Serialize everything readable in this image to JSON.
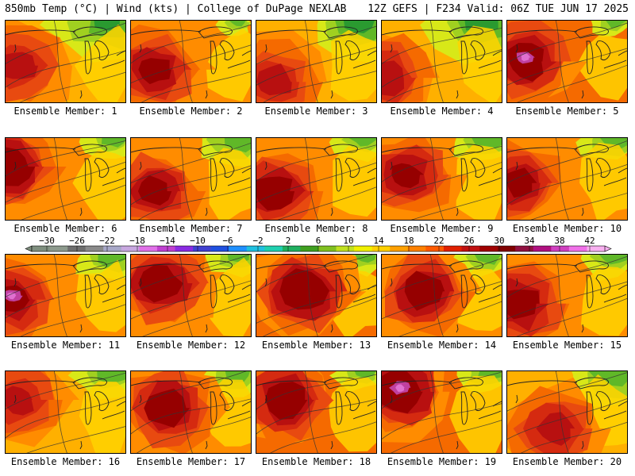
{
  "header": {
    "left_title": "850mb Temp (°C) | Wind (kts) | College of DuPage NEXLAB",
    "right_title": "12Z GEFS | F234 Valid: 06Z TUE JUN 17 2025"
  },
  "members": [
    {
      "label": "Ensemble Member: 1",
      "warm": 0.45,
      "cool": 0.75,
      "heat_x": 0.1,
      "heat_y": 0.55,
      "pink": false
    },
    {
      "label": "Ensemble Member: 2",
      "warm": 0.5,
      "cool": 0.15,
      "heat_x": 0.2,
      "heat_y": 0.6,
      "pink": false
    },
    {
      "label": "Ensemble Member: 3",
      "warm": 0.4,
      "cool": 0.7,
      "heat_x": 0.15,
      "heat_y": 0.75,
      "pink": false
    },
    {
      "label": "Ensemble Member: 4",
      "warm": 0.35,
      "cool": 0.85,
      "heat_x": 0.05,
      "heat_y": 0.7,
      "pink": false
    },
    {
      "label": "Ensemble Member: 5",
      "warm": 0.85,
      "cool": 0.2,
      "heat_x": 0.15,
      "heat_y": 0.5,
      "pink": true
    },
    {
      "label": "Ensemble Member: 6",
      "warm": 0.75,
      "cool": 0.3,
      "heat_x": 0.05,
      "heat_y": 0.35,
      "pink": false
    },
    {
      "label": "Ensemble Member: 7",
      "warm": 0.55,
      "cool": 0.45,
      "heat_x": 0.2,
      "heat_y": 0.65,
      "pink": false
    },
    {
      "label": "Ensemble Member: 8",
      "warm": 0.7,
      "cool": 0.3,
      "heat_x": 0.15,
      "heat_y": 0.65,
      "pink": false
    },
    {
      "label": "Ensemble Member: 9",
      "warm": 0.5,
      "cool": 0.4,
      "heat_x": 0.2,
      "heat_y": 0.45,
      "pink": false
    },
    {
      "label": "Ensemble Member: 10",
      "warm": 0.6,
      "cool": 0.35,
      "heat_x": 0.1,
      "heat_y": 0.55,
      "pink": false
    },
    {
      "label": "Ensemble Member: 11",
      "warm": 0.65,
      "cool": 0.4,
      "heat_x": 0.05,
      "heat_y": 0.55,
      "pink": true
    },
    {
      "label": "Ensemble Member: 12",
      "warm": 0.8,
      "cool": 0.3,
      "heat_x": 0.25,
      "heat_y": 0.35,
      "pink": false
    },
    {
      "label": "Ensemble Member: 13",
      "warm": 0.9,
      "cool": 0.25,
      "heat_x": 0.4,
      "heat_y": 0.45,
      "pink": false
    },
    {
      "label": "Ensemble Member: 14",
      "warm": 0.75,
      "cool": 0.3,
      "heat_x": 0.35,
      "heat_y": 0.45,
      "pink": false
    },
    {
      "label": "Ensemble Member: 15",
      "warm": 0.75,
      "cool": 0.35,
      "heat_x": 0.1,
      "heat_y": 0.6,
      "pink": false
    },
    {
      "label": "Ensemble Member: 16",
      "warm": 0.45,
      "cool": 0.4,
      "heat_x": 0.1,
      "heat_y": 0.35,
      "pink": false
    },
    {
      "label": "Ensemble Member: 17",
      "warm": 0.7,
      "cool": 0.35,
      "heat_x": 0.3,
      "heat_y": 0.45,
      "pink": false
    },
    {
      "label": "Ensemble Member: 18",
      "warm": 0.85,
      "cool": 0.25,
      "heat_x": 0.25,
      "heat_y": 0.35,
      "pink": false
    },
    {
      "label": "Ensemble Member: 19",
      "warm": 0.9,
      "cool": 0.3,
      "heat_x": 0.15,
      "heat_y": 0.25,
      "pink": true
    },
    {
      "label": "Ensemble Member: 20",
      "warm": 0.3,
      "cool": 0.6,
      "heat_x": 0.4,
      "heat_y": 0.7,
      "pink": false
    }
  ],
  "colorbar": {
    "tick_labels": [
      "-30",
      "-26",
      "-22",
      "-18",
      "-14",
      "-10",
      "-6",
      "-2",
      "2",
      "6",
      "10",
      "14",
      "18",
      "22",
      "26",
      "30",
      "34",
      "38",
      "42"
    ],
    "colors": [
      "#7f8f7f",
      "#8d9a8d",
      "#6e6e6e",
      "#8a8a8a",
      "#a8a8c8",
      "#c8a8e0",
      "#e070e8",
      "#c040d0",
      "#8a2be2",
      "#4040d0",
      "#2050e0",
      "#2090ff",
      "#20c0e0",
      "#20d0b0",
      "#20b060",
      "#40a020",
      "#80c020",
      "#c0e020",
      "#f0f000",
      "#ffd000",
      "#ffa000",
      "#ff8000",
      "#ff5a00",
      "#e02000",
      "#c01010",
      "#a00000",
      "#800000",
      "#901040",
      "#b01080",
      "#d040c0",
      "#f070e8",
      "#f8b0f0"
    ],
    "range": [
      -32,
      44
    ]
  },
  "field_colors": {
    "cool": [
      "#2a9a30",
      "#60b828",
      "#a0d020",
      "#d8e818"
    ],
    "warm": [
      "#f4f400",
      "#ffd400",
      "#ffb000",
      "#ff8c00",
      "#f56a00",
      "#e84a10",
      "#d52a10",
      "#b81010",
      "#960000"
    ],
    "pink": [
      "#c040a0",
      "#e070d0"
    ]
  }
}
